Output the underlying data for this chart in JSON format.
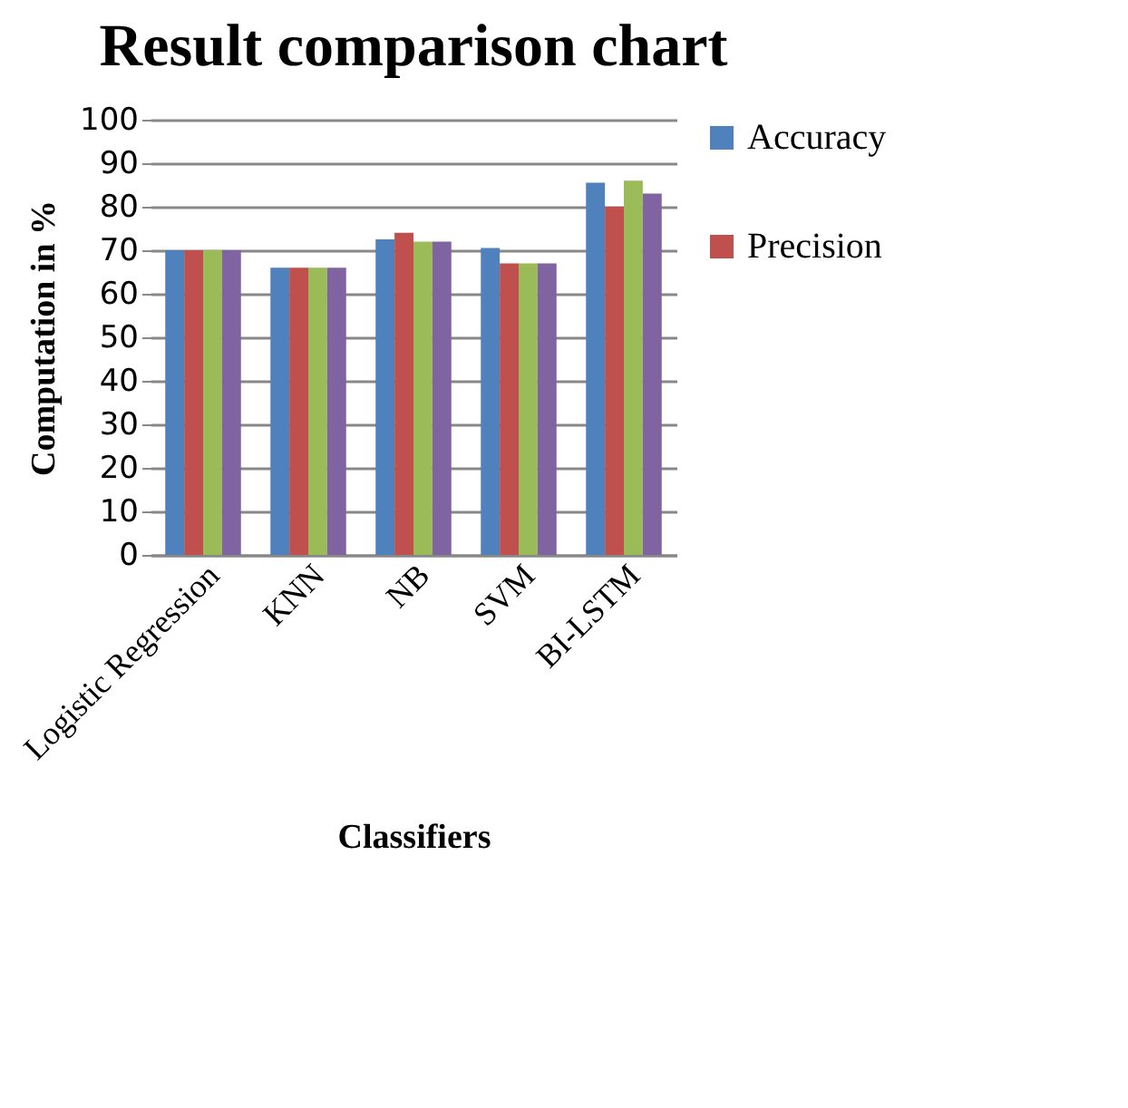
{
  "chart_data": {
    "type": "bar",
    "title": "Result comparison chart",
    "xlabel": "Classifiers",
    "ylabel": "Computation in %",
    "categories": [
      "Logistic Regression",
      "KNN",
      "NB",
      "SVM",
      "BI-LSTM"
    ],
    "series": [
      {
        "name": "Accuracy",
        "color": "#4f81bd",
        "values": [
          70,
          66,
          72.5,
          70.5,
          85.5
        ]
      },
      {
        "name": "Precision",
        "color": "#c0504d",
        "values": [
          70,
          66,
          74,
          67,
          80
        ]
      },
      {
        "color": "#9bbb59",
        "values": [
          70,
          66,
          72,
          67,
          86
        ]
      },
      {
        "color": "#8064a2",
        "values": [
          70,
          66,
          72,
          67,
          83
        ]
      }
    ],
    "ylim": [
      0,
      100
    ],
    "yticks": [
      0,
      10,
      20,
      30,
      40,
      50,
      60,
      70,
      80,
      90,
      100
    ],
    "grid": "y",
    "legend": "right"
  }
}
